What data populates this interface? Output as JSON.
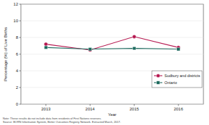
{
  "chart_data": {
    "type": "line",
    "x_label": "Year",
    "y_label": "Percentage (%) of Live Births",
    "categories": [
      "2013",
      "2014",
      "2015",
      "2016"
    ],
    "series": [
      {
        "name": "Sudbury and districts",
        "color": "#b5174f",
        "marker": "circle",
        "values": [
          7.2,
          6.5,
          8.1,
          6.8
        ]
      },
      {
        "name": "Ontario",
        "color": "#1f6b5f",
        "marker": "square",
        "values": [
          6.8,
          6.6,
          6.7,
          6.6
        ]
      }
    ],
    "ylim": [
      0,
      12
    ],
    "yticks": [
      0,
      2,
      4,
      6,
      8,
      10,
      12
    ],
    "grid": true,
    "legend": "lower right",
    "annotations": [
      "Note: These results do not include data from residents of First Nations reserves.",
      "Source: BORN Information System, Better Outcomes Registry Network. Extracted March, 2017."
    ]
  }
}
